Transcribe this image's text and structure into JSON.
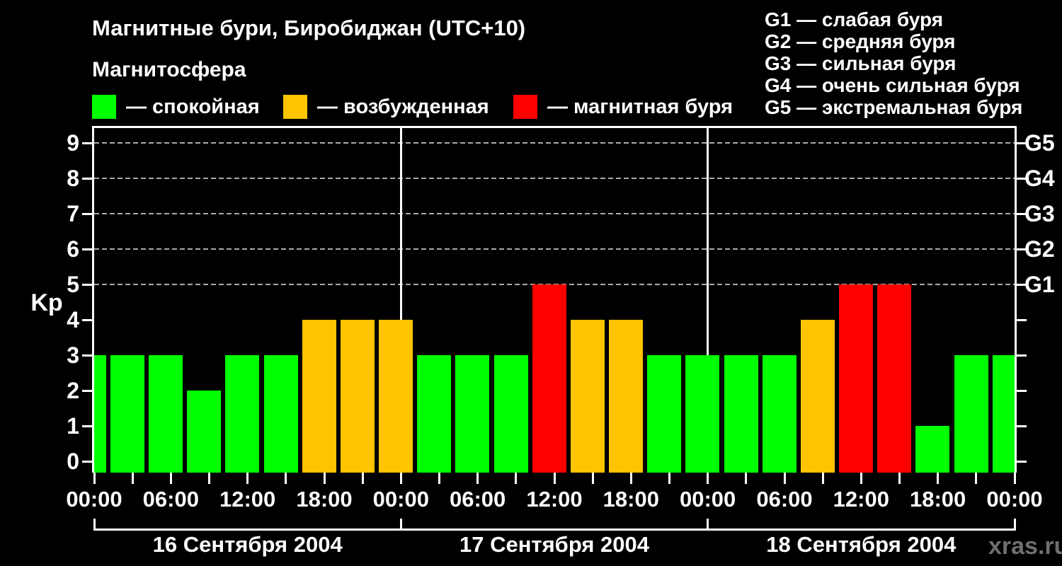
{
  "header": {
    "title": "Магнитные бури, Биробиджан (UTC+10)",
    "subtitle": "Магнитосфера",
    "storm_legend": [
      {
        "name": "quiet",
        "label": "— спокойная",
        "color": "#00ff00"
      },
      {
        "name": "excited",
        "label": "— возбужденная",
        "color": "#ffc400"
      },
      {
        "name": "storm",
        "label": "— магнитная буря",
        "color": "#ff0000"
      }
    ],
    "g_scale_legend": [
      "G1 — слабая буря",
      "G2 — средняя буря",
      "G3 — сильная буря",
      "G4 — очень сильная буря",
      "G5 — экстремальная буря"
    ]
  },
  "chart_data": {
    "type": "bar",
    "title": "Магнитные бури, Биробиджан (UTC+10)",
    "ylabel": "Kp",
    "ylim": [
      0,
      9
    ],
    "y_ticks": [
      "0",
      "1",
      "2",
      "3",
      "4",
      "5",
      "6",
      "7",
      "8",
      "9"
    ],
    "grid_levels": [
      5,
      6,
      7,
      8,
      9
    ],
    "right_axis_labels": [
      {
        "label": "G5",
        "kp": 9
      },
      {
        "label": "G4",
        "kp": 8
      },
      {
        "label": "G3",
        "kp": 7
      },
      {
        "label": "G2",
        "kp": 6
      },
      {
        "label": "G1",
        "kp": 5
      }
    ],
    "x_tick_labels": [
      "00:00",
      "06:00",
      "12:00",
      "18:00",
      "00:00",
      "06:00",
      "12:00",
      "18:00",
      "00:00",
      "06:00",
      "12:00",
      "18:00",
      "00:00"
    ],
    "interval_hours": 3,
    "leading_partial_bar_kp": 3,
    "days": [
      {
        "date": "16 Сентября 2004",
        "kp": [
          3,
          3,
          2,
          3,
          3,
          4,
          4,
          4
        ]
      },
      {
        "date": "17 Сентября 2004",
        "kp": [
          3,
          3,
          3,
          5,
          4,
          4,
          3,
          3
        ]
      },
      {
        "date": "18 Сентября 2004",
        "kp": [
          3,
          3,
          4,
          5,
          5,
          1,
          3,
          3
        ]
      }
    ],
    "color_mapping": {
      "kp_0_to_3": "#00ff00",
      "kp_4": "#ffc400",
      "kp_5_plus": "#ff0000"
    },
    "grid_color": "#aaaaaa",
    "axis_color": "#ffffff"
  },
  "footer": {
    "watermark": "xras.ru"
  }
}
